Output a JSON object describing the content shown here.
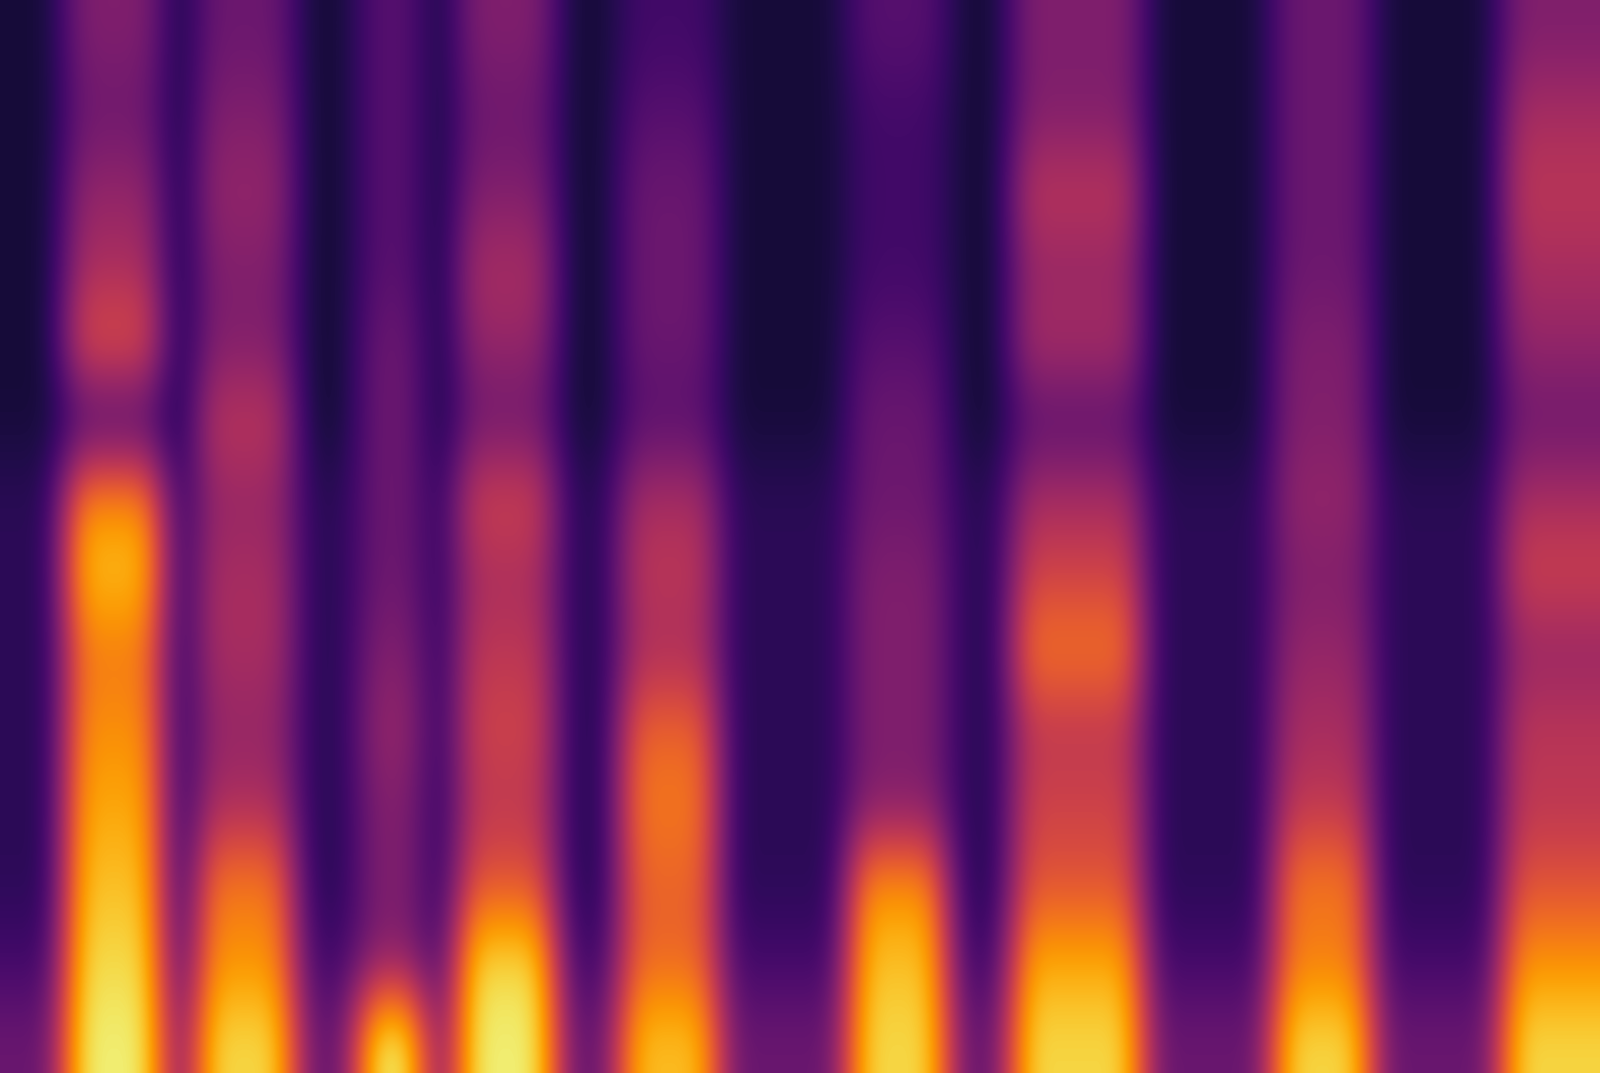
{
  "chart_data": {
    "type": "heatmap",
    "color": "inferno",
    "tick_labels": false,
    "zlim": [
      0,
      1
    ],
    "cells": [
      [
        0.3,
        0.3,
        0.95,
        0.95,
        0.95,
        0.3,
        0.9,
        0.9,
        0.9,
        0.3,
        0.3,
        0.95,
        0.95,
        0.3,
        0.95,
        0.95,
        0.95,
        0.3,
        0.3,
        0.85,
        0.85,
        0.85,
        0.3,
        0.3,
        0.3,
        0.3,
        0.9,
        0.9,
        0.9,
        0.3,
        0.3,
        0.9,
        0.9,
        0.9,
        0.9,
        0.3,
        0.3,
        0.3,
        0.3,
        0.9,
        0.9,
        0.9,
        0.3,
        0.3,
        0.3,
        0.3,
        0.9,
        0.9,
        0.9
      ],
      [
        0.2,
        0.2,
        0.9,
        0.9,
        0.9,
        0.2,
        0.75,
        0.75,
        0.75,
        0.2,
        0.2,
        0.35,
        0.35,
        0.2,
        0.9,
        0.9,
        0.9,
        0.2,
        0.2,
        0.65,
        0.65,
        0.65,
        0.2,
        0.2,
        0.2,
        0.2,
        0.85,
        0.85,
        0.85,
        0.2,
        0.2,
        0.8,
        0.8,
        0.8,
        0.8,
        0.2,
        0.2,
        0.2,
        0.2,
        0.7,
        0.7,
        0.7,
        0.2,
        0.2,
        0.2,
        0.2,
        0.75,
        0.75,
        0.75
      ],
      [
        0.15,
        0.15,
        0.85,
        0.85,
        0.85,
        0.15,
        0.7,
        0.7,
        0.7,
        0.15,
        0.15,
        0.35,
        0.35,
        0.15,
        0.6,
        0.6,
        0.6,
        0.15,
        0.15,
        0.65,
        0.65,
        0.65,
        0.15,
        0.15,
        0.15,
        0.15,
        0.75,
        0.75,
        0.75,
        0.15,
        0.15,
        0.6,
        0.6,
        0.6,
        0.6,
        0.15,
        0.15,
        0.15,
        0.15,
        0.7,
        0.7,
        0.7,
        0.15,
        0.15,
        0.15,
        0.15,
        0.6,
        0.6,
        0.6
      ],
      [
        0.15,
        0.15,
        0.8,
        0.8,
        0.8,
        0.15,
        0.45,
        0.45,
        0.45,
        0.15,
        0.15,
        0.35,
        0.35,
        0.15,
        0.5,
        0.5,
        0.5,
        0.15,
        0.15,
        0.7,
        0.7,
        0.7,
        0.15,
        0.15,
        0.15,
        0.15,
        0.35,
        0.35,
        0.35,
        0.15,
        0.15,
        0.55,
        0.55,
        0.55,
        0.55,
        0.15,
        0.15,
        0.15,
        0.15,
        0.5,
        0.5,
        0.5,
        0.15,
        0.15,
        0.15,
        0.15,
        0.5,
        0.5,
        0.5
      ],
      [
        0.15,
        0.15,
        0.75,
        0.75,
        0.75,
        0.15,
        0.4,
        0.4,
        0.4,
        0.15,
        0.15,
        0.4,
        0.4,
        0.15,
        0.55,
        0.55,
        0.55,
        0.15,
        0.15,
        0.65,
        0.65,
        0.65,
        0.15,
        0.15,
        0.15,
        0.15,
        0.35,
        0.35,
        0.35,
        0.15,
        0.15,
        0.5,
        0.5,
        0.5,
        0.5,
        0.15,
        0.15,
        0.15,
        0.15,
        0.45,
        0.45,
        0.45,
        0.15,
        0.15,
        0.15,
        0.15,
        0.5,
        0.5,
        0.5
      ],
      [
        0.15,
        0.15,
        0.7,
        0.7,
        0.7,
        0.15,
        0.45,
        0.45,
        0.45,
        0.15,
        0.15,
        0.35,
        0.35,
        0.15,
        0.5,
        0.5,
        0.5,
        0.15,
        0.15,
        0.45,
        0.45,
        0.45,
        0.15,
        0.15,
        0.15,
        0.15,
        0.35,
        0.35,
        0.35,
        0.15,
        0.15,
        0.7,
        0.7,
        0.7,
        0.7,
        0.15,
        0.15,
        0.15,
        0.15,
        0.4,
        0.4,
        0.4,
        0.15,
        0.15,
        0.15,
        0.15,
        0.4,
        0.4,
        0.4
      ],
      [
        0.15,
        0.15,
        0.85,
        0.85,
        0.85,
        0.15,
        0.45,
        0.45,
        0.45,
        0.15,
        0.15,
        0.3,
        0.3,
        0.15,
        0.45,
        0.45,
        0.45,
        0.15,
        0.15,
        0.5,
        0.5,
        0.5,
        0.15,
        0.15,
        0.15,
        0.15,
        0.35,
        0.35,
        0.35,
        0.15,
        0.15,
        0.55,
        0.55,
        0.55,
        0.55,
        0.15,
        0.15,
        0.15,
        0.15,
        0.35,
        0.35,
        0.35,
        0.15,
        0.15,
        0.15,
        0.15,
        0.55,
        0.55,
        0.55
      ],
      [
        0.15,
        0.15,
        0.75,
        0.75,
        0.75,
        0.15,
        0.4,
        0.4,
        0.4,
        0.15,
        0.15,
        0.3,
        0.3,
        0.15,
        0.55,
        0.55,
        0.55,
        0.15,
        0.15,
        0.45,
        0.45,
        0.45,
        0.15,
        0.15,
        0.15,
        0.15,
        0.3,
        0.3,
        0.3,
        0.15,
        0.15,
        0.45,
        0.45,
        0.45,
        0.45,
        0.15,
        0.15,
        0.15,
        0.15,
        0.4,
        0.4,
        0.4,
        0.15,
        0.15,
        0.15,
        0.15,
        0.45,
        0.45,
        0.45
      ],
      [
        0.1,
        0.1,
        0.2,
        0.2,
        0.2,
        0.1,
        0.5,
        0.5,
        0.5,
        0.1,
        0.1,
        0.3,
        0.3,
        0.1,
        0.3,
        0.3,
        0.3,
        0.1,
        0.1,
        0.25,
        0.25,
        0.25,
        0.1,
        0.1,
        0.1,
        0.1,
        0.3,
        0.3,
        0.3,
        0.1,
        0.1,
        0.25,
        0.25,
        0.25,
        0.25,
        0.1,
        0.1,
        0.1,
        0.1,
        0.35,
        0.35,
        0.35,
        0.1,
        0.1,
        0.1,
        0.1,
        0.3,
        0.3,
        0.3
      ],
      [
        0.1,
        0.1,
        0.6,
        0.6,
        0.6,
        0.1,
        0.35,
        0.35,
        0.35,
        0.1,
        0.1,
        0.3,
        0.3,
        0.1,
        0.4,
        0.4,
        0.4,
        0.1,
        0.1,
        0.3,
        0.3,
        0.3,
        0.1,
        0.1,
        0.1,
        0.1,
        0.25,
        0.25,
        0.25,
        0.1,
        0.1,
        0.45,
        0.45,
        0.45,
        0.45,
        0.1,
        0.1,
        0.1,
        0.1,
        0.35,
        0.35,
        0.35,
        0.1,
        0.1,
        0.1,
        0.1,
        0.4,
        0.4,
        0.4
      ],
      [
        0.1,
        0.1,
        0.45,
        0.45,
        0.45,
        0.1,
        0.35,
        0.35,
        0.35,
        0.1,
        0.1,
        0.25,
        0.25,
        0.1,
        0.45,
        0.45,
        0.45,
        0.1,
        0.1,
        0.3,
        0.3,
        0.3,
        0.1,
        0.1,
        0.1,
        0.1,
        0.2,
        0.2,
        0.2,
        0.1,
        0.1,
        0.4,
        0.4,
        0.4,
        0.4,
        0.1,
        0.1,
        0.1,
        0.1,
        0.3,
        0.3,
        0.3,
        0.1,
        0.1,
        0.1,
        0.1,
        0.45,
        0.45,
        0.45
      ],
      [
        0.1,
        0.1,
        0.4,
        0.4,
        0.4,
        0.1,
        0.4,
        0.4,
        0.4,
        0.1,
        0.1,
        0.25,
        0.25,
        0.1,
        0.35,
        0.35,
        0.35,
        0.1,
        0.1,
        0.3,
        0.3,
        0.3,
        0.1,
        0.1,
        0.1,
        0.1,
        0.2,
        0.2,
        0.2,
        0.1,
        0.1,
        0.5,
        0.5,
        0.5,
        0.5,
        0.1,
        0.1,
        0.1,
        0.1,
        0.3,
        0.3,
        0.3,
        0.1,
        0.1,
        0.1,
        0.1,
        0.5,
        0.5,
        0.5
      ],
      [
        0.1,
        0.1,
        0.3,
        0.3,
        0.3,
        0.1,
        0.35,
        0.35,
        0.35,
        0.1,
        0.1,
        0.25,
        0.25,
        0.1,
        0.3,
        0.3,
        0.3,
        0.1,
        0.1,
        0.25,
        0.25,
        0.25,
        0.1,
        0.1,
        0.1,
        0.1,
        0.2,
        0.2,
        0.2,
        0.1,
        0.1,
        0.35,
        0.35,
        0.35,
        0.35,
        0.1,
        0.1,
        0.1,
        0.1,
        0.3,
        0.3,
        0.3,
        0.1,
        0.1,
        0.1,
        0.1,
        0.45,
        0.45,
        0.45
      ],
      [
        0.1,
        0.1,
        0.35,
        0.35,
        0.35,
        0.1,
        0.3,
        0.3,
        0.3,
        0.1,
        0.1,
        0.25,
        0.25,
        0.1,
        0.35,
        0.35,
        0.35,
        0.1,
        0.1,
        0.2,
        0.2,
        0.2,
        0.1,
        0.1,
        0.1,
        0.1,
        0.25,
        0.25,
        0.25,
        0.1,
        0.1,
        0.35,
        0.35,
        0.35,
        0.35,
        0.1,
        0.1,
        0.1,
        0.1,
        0.3,
        0.3,
        0.3,
        0.1,
        0.1,
        0.1,
        0.1,
        0.35,
        0.35,
        0.35
      ]
    ]
  }
}
